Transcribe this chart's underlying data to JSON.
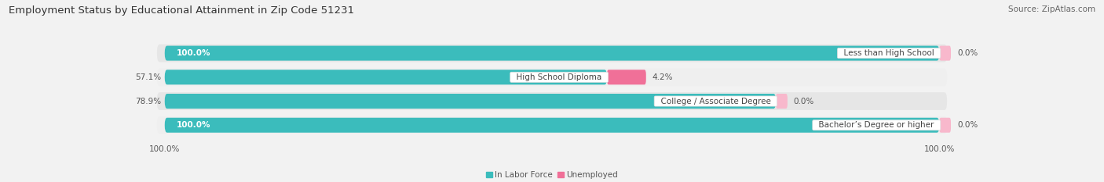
{
  "title": "Employment Status by Educational Attainment in Zip Code 51231",
  "source": "Source: ZipAtlas.com",
  "categories": [
    "Less than High School",
    "High School Diploma",
    "College / Associate Degree",
    "Bachelor’s Degree or higher"
  ],
  "in_labor_force": [
    100.0,
    57.1,
    78.9,
    100.0
  ],
  "unemployed": [
    0.0,
    4.2,
    0.0,
    0.0
  ],
  "labor_force_color": "#3bbcbc",
  "unemployed_color": "#f07098",
  "unemployed_color_light": "#f8b8cc",
  "bg_color": "#f2f2f2",
  "row_bg_even": "#efefef",
  "row_bg_odd": "#e6e6e6",
  "title_fontsize": 9.5,
  "source_fontsize": 7.5,
  "label_fontsize": 7.5,
  "value_fontsize": 7.5,
  "legend_fontsize": 7.5,
  "bar_height": 0.62,
  "max_val": 100.0,
  "left_axis_label": "100.0%",
  "right_axis_label": "100.0%"
}
